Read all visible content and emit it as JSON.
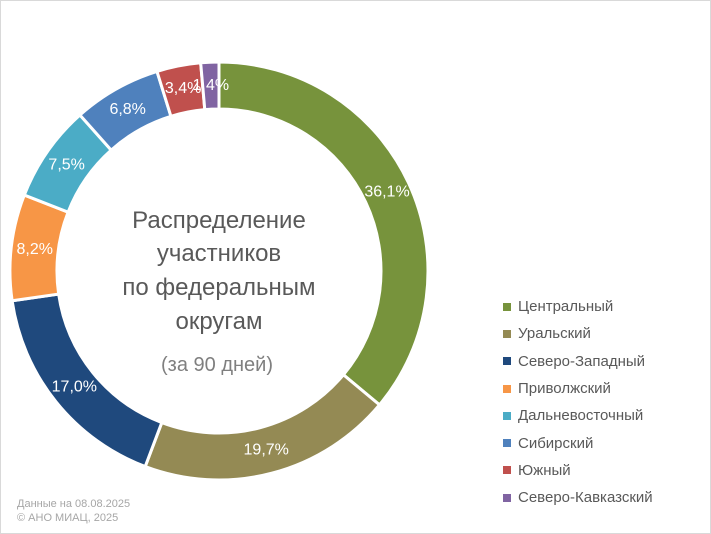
{
  "chart_data": {
    "type": "pie",
    "variant": "donut",
    "title": [
      "Распределение",
      "участников",
      "по федеральным",
      "округам"
    ],
    "subtitle": "(за 90 дней)",
    "categories": [
      "Центральный",
      "Уральский",
      "Северо-Западный",
      "Приволжский",
      "Дальневосточный",
      "Сибирский",
      "Южный",
      "Северо-Кавказский"
    ],
    "values": [
      36.1,
      19.7,
      17.0,
      8.2,
      7.5,
      6.8,
      3.4,
      1.4
    ],
    "value_labels": [
      "36,1%",
      "19,7%",
      "17,0%",
      "8,2%",
      "7,5%",
      "6,8%",
      "3,4%",
      "1,4%"
    ],
    "colors": [
      "#77933c",
      "#948a54",
      "#1f497d",
      "#f79646",
      "#4bacc6",
      "#4f81bd",
      "#c0504d",
      "#8064a2"
    ],
    "legend_position": "right-bottom"
  },
  "footnote": {
    "line1": "Данные на 08.08.2025",
    "line2": "© АНО МИАЦ, 2025"
  }
}
